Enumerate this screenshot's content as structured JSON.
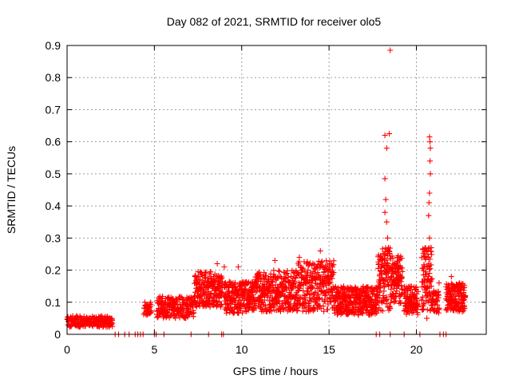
{
  "chart_data": {
    "type": "scatter",
    "title": "Day 082 of 2021, SRMTID for receiver olo5",
    "xlabel": "GPS time / hours",
    "ylabel": "SRMTID / TECUs",
    "xlim": [
      0,
      24
    ],
    "ylim": [
      0,
      0.9
    ],
    "xticks": [
      0,
      5,
      10,
      15,
      20
    ],
    "yticks": [
      0,
      0.1,
      0.2,
      0.3,
      0.4,
      0.5,
      0.6,
      0.7,
      0.8,
      0.9
    ],
    "grid": true,
    "marker": "+",
    "color": "#ff0000",
    "segments": [
      {
        "start": 0.0,
        "end": 2.6,
        "base": 0.04,
        "spread": 0.035,
        "step": 0.025
      },
      {
        "start": 4.4,
        "end": 4.85,
        "base": 0.08,
        "spread": 0.04,
        "step": 0.03
      },
      {
        "start": 5.15,
        "end": 7.3,
        "base": 0.085,
        "spread": 0.07,
        "step": 0.02
      },
      {
        "start": 7.3,
        "end": 8.9,
        "base": 0.14,
        "spread": 0.11,
        "step": 0.015
      },
      {
        "start": 9.0,
        "end": 10.8,
        "base": 0.115,
        "spread": 0.1,
        "step": 0.015
      },
      {
        "start": 10.8,
        "end": 13.2,
        "base": 0.135,
        "spread": 0.13,
        "step": 0.015
      },
      {
        "start": 13.2,
        "end": 15.3,
        "base": 0.15,
        "spread": 0.16,
        "step": 0.015
      },
      {
        "start": 15.3,
        "end": 17.8,
        "base": 0.105,
        "spread": 0.09,
        "step": 0.015
      },
      {
        "start": 17.8,
        "end": 18.5,
        "base": 0.17,
        "spread": 0.2,
        "step": 0.012
      },
      {
        "start": 18.5,
        "end": 19.2,
        "base": 0.17,
        "spread": 0.15,
        "step": 0.012
      },
      {
        "start": 19.3,
        "end": 20.1,
        "base": 0.105,
        "spread": 0.09,
        "step": 0.015
      },
      {
        "start": 20.3,
        "end": 20.9,
        "base": 0.17,
        "spread": 0.2,
        "step": 0.012
      },
      {
        "start": 20.9,
        "end": 21.3,
        "base": 0.1,
        "spread": 0.07,
        "step": 0.02
      },
      {
        "start": 21.7,
        "end": 22.8,
        "base": 0.115,
        "spread": 0.09,
        "step": 0.015
      }
    ],
    "points": [
      [
        18.2,
        0.62
      ],
      [
        18.3,
        0.58
      ],
      [
        18.45,
        0.625
      ],
      [
        18.5,
        0.885
      ],
      [
        18.2,
        0.485
      ],
      [
        18.25,
        0.42
      ],
      [
        18.2,
        0.38
      ],
      [
        18.3,
        0.35
      ],
      [
        18.35,
        0.3
      ],
      [
        18.4,
        0.27
      ],
      [
        20.75,
        0.615
      ],
      [
        20.78,
        0.6
      ],
      [
        20.8,
        0.58
      ],
      [
        20.78,
        0.54
      ],
      [
        20.8,
        0.5
      ],
      [
        20.75,
        0.44
      ],
      [
        20.72,
        0.41
      ],
      [
        20.7,
        0.37
      ],
      [
        20.75,
        0.3
      ],
      [
        20.85,
        0.27
      ],
      [
        20.6,
        0.05
      ],
      [
        14.5,
        0.26
      ],
      [
        11.9,
        0.23
      ],
      [
        13.3,
        0.24
      ],
      [
        8.6,
        0.22
      ],
      [
        9.0,
        0.21
      ],
      [
        9.8,
        0.21
      ],
      [
        21.3,
        0.16
      ],
      [
        22.0,
        0.18
      ]
    ],
    "gap_points": [
      2.75,
      2.95,
      3.3,
      3.55,
      3.9,
      4.05,
      4.2,
      4.35,
      5.0,
      5.1,
      5.55,
      7.1,
      8.1,
      8.85,
      8.95,
      17.7,
      17.9,
      18.5,
      19.3,
      20.2,
      21.35,
      21.55,
      21.7
    ]
  }
}
